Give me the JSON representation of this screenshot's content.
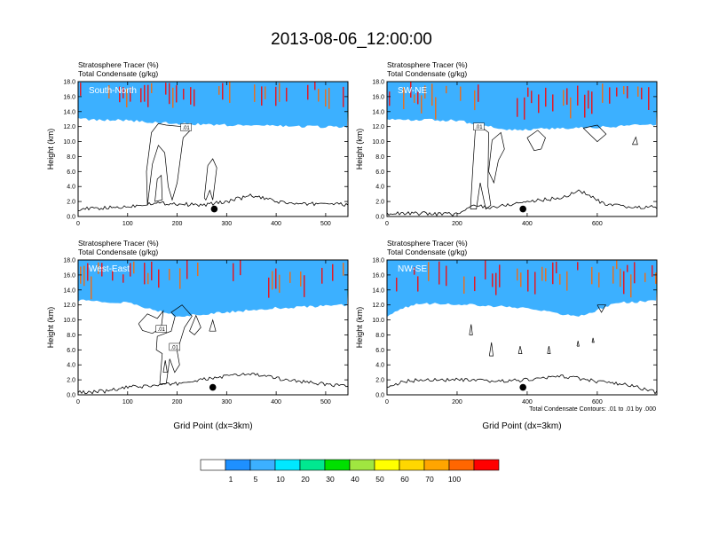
{
  "title": "2013-08-06_12:00:00",
  "colors": {
    "levels": [
      "#ffffff",
      "#1e90ff",
      "#3cb0ff",
      "#00e8ff",
      "#00e890",
      "#00e000",
      "#a0e640",
      "#ffff00",
      "#ffd700",
      "#ffa500",
      "#ff6600",
      "#ff0000"
    ],
    "axis": "#000000",
    "contour": "#000000",
    "terrain": "#000000",
    "marker": "#000000"
  },
  "legend": {
    "labels": [
      "1",
      "5",
      "10",
      "20",
      "30",
      "40",
      "50",
      "60",
      "70",
      "100"
    ]
  },
  "footnote": "Total Condensate Contours: .01 to .01 by .000",
  "chart_data": [
    {
      "type": "heatmap",
      "panel_label": "South-North",
      "subtitle1": "Stratosphere Tracer   (%)",
      "subtitle2": "Total Condensate   (g/kg)",
      "ylabel": "Height (km)",
      "xlabel": "",
      "xlim": [
        0,
        545
      ],
      "ylim": [
        0,
        18
      ],
      "xticks": [
        0,
        100,
        200,
        300,
        400,
        500
      ],
      "yticks": [
        "0.0",
        "2.0",
        "4.0",
        "6.0",
        "8.0",
        "10.0",
        "12.0",
        "14.0",
        "16.0",
        "18.0"
      ],
      "tracer_base_km": [
        [
          0,
          13.0
        ],
        [
          100,
          12.8
        ],
        [
          200,
          12.4
        ],
        [
          300,
          12.2
        ],
        [
          400,
          12.1
        ],
        [
          545,
          11.9
        ]
      ],
      "terrain_km": [
        [
          0,
          1.0
        ],
        [
          50,
          1.1
        ],
        [
          100,
          1.3
        ],
        [
          150,
          1.8
        ],
        [
          200,
          1.7
        ],
        [
          250,
          1.5
        ],
        [
          300,
          2.0
        ],
        [
          350,
          2.8
        ],
        [
          400,
          2.0
        ],
        [
          450,
          1.6
        ],
        [
          500,
          1.8
        ],
        [
          545,
          1.5
        ]
      ],
      "marker": [
        275,
        1.0
      ],
      "contour_labels": [
        {
          "text": ".01",
          "x": 218,
          "y": 11.9
        }
      ],
      "contours": [
        [
          [
            140,
            1.5
          ],
          [
            150,
            7.0
          ],
          [
            162,
            9.5
          ],
          [
            175,
            8.5
          ],
          [
            182,
            4.0
          ],
          [
            190,
            2.2
          ],
          [
            200,
            4.5
          ],
          [
            212,
            10.5
          ],
          [
            228,
            11.6
          ],
          [
            210,
            12.0
          ],
          [
            178,
            12.2
          ],
          [
            162,
            12.4
          ],
          [
            148,
            11.2
          ],
          [
            138,
            6.0
          ],
          [
            140,
            1.5
          ]
        ],
        [
          [
            255,
            2.5
          ],
          [
            262,
            6.8
          ],
          [
            272,
            7.7
          ],
          [
            280,
            6.5
          ],
          [
            272,
            2.2
          ],
          [
            266,
            3.5
          ],
          [
            258,
            2.2
          ],
          [
            255,
            2.5
          ]
        ],
        [
          [
            155,
            2.0
          ],
          [
            160,
            5.0
          ],
          [
            168,
            5.5
          ],
          [
            170,
            2.2
          ],
          [
            155,
            2.0
          ]
        ]
      ]
    },
    {
      "type": "heatmap",
      "panel_label": "SW-NE",
      "subtitle1": "Stratosphere Tracer   (%)",
      "subtitle2": "Total Condensate   (g/kg)",
      "ylabel": "Height (km)",
      "xlabel": "",
      "xlim": [
        0,
        770
      ],
      "ylim": [
        0,
        18
      ],
      "xticks": [
        0,
        200,
        400,
        600
      ],
      "yticks": [
        "0.0",
        "2.0",
        "4.0",
        "6.0",
        "8.0",
        "10.0",
        "12.0",
        "14.0",
        "16.0",
        "18.0"
      ],
      "tracer_base_km": [
        [
          0,
          13.0
        ],
        [
          200,
          12.8
        ],
        [
          350,
          11.5
        ],
        [
          500,
          11.8
        ],
        [
          650,
          12.0
        ],
        [
          770,
          12.3
        ]
      ],
      "terrain_km": [
        [
          0,
          0.4
        ],
        [
          100,
          0.4
        ],
        [
          200,
          0.3
        ],
        [
          250,
          1.5
        ],
        [
          300,
          1.2
        ],
        [
          400,
          2.0
        ],
        [
          500,
          2.5
        ],
        [
          550,
          3.5
        ],
        [
          620,
          1.6
        ],
        [
          700,
          1.2
        ],
        [
          770,
          1.3
        ]
      ],
      "marker": [
        388,
        1.0
      ],
      "contour_labels": [
        {
          "text": ".01",
          "x": 262,
          "y": 12.0
        }
      ],
      "contours": [
        [
          [
            238,
            1.0
          ],
          [
            245,
            6.5
          ],
          [
            252,
            11.6
          ],
          [
            265,
            12.1
          ],
          [
            290,
            11.2
          ],
          [
            288,
            4.0
          ],
          [
            296,
            1.5
          ],
          [
            282,
            1.0
          ],
          [
            266,
            4.5
          ],
          [
            255,
            1.0
          ],
          [
            238,
            1.0
          ]
        ],
        [
          [
            290,
            6.0
          ],
          [
            300,
            10.2
          ],
          [
            325,
            11.2
          ],
          [
            335,
            9.0
          ],
          [
            318,
            7.5
          ],
          [
            305,
            4.5
          ],
          [
            290,
            6.0
          ]
        ],
        [
          [
            400,
            10.5
          ],
          [
            430,
            11.5
          ],
          [
            452,
            10.5
          ],
          [
            440,
            9.0
          ],
          [
            420,
            8.8
          ],
          [
            400,
            10.5
          ]
        ],
        [
          [
            560,
            11.8
          ],
          [
            600,
            10.0
          ],
          [
            625,
            11.0
          ],
          [
            600,
            12.2
          ],
          [
            560,
            11.8
          ]
        ],
        [
          [
            700,
            9.6
          ],
          [
            710,
            10.6
          ],
          [
            715,
            9.6
          ],
          [
            700,
            9.6
          ]
        ]
      ]
    },
    {
      "type": "heatmap",
      "panel_label": "West-East",
      "subtitle1": "Stratosphere Tracer   (%)",
      "subtitle2": "Total Condensate   (g/kg)",
      "ylabel": "Height (km)",
      "xlabel": "Grid Point (dx=3km)",
      "xlim": [
        0,
        545
      ],
      "ylim": [
        0,
        18
      ],
      "xticks": [
        0,
        100,
        200,
        300,
        400,
        500
      ],
      "yticks": [
        "0.0",
        "2.0",
        "4.0",
        "6.0",
        "8.0",
        "10.0",
        "12.0",
        "14.0",
        "16.0",
        "18.0"
      ],
      "tracer_base_km": [
        [
          0,
          12.6
        ],
        [
          100,
          12.3
        ],
        [
          200,
          10.5
        ],
        [
          300,
          11.0
        ],
        [
          400,
          11.6
        ],
        [
          545,
          12.0
        ]
      ],
      "terrain_km": [
        [
          0,
          0.3
        ],
        [
          60,
          0.5
        ],
        [
          100,
          1.0
        ],
        [
          150,
          1.2
        ],
        [
          200,
          1.5
        ],
        [
          250,
          2.0
        ],
        [
          300,
          2.5
        ],
        [
          350,
          2.8
        ],
        [
          400,
          2.2
        ],
        [
          450,
          1.8
        ],
        [
          500,
          1.4
        ],
        [
          545,
          1.2
        ]
      ],
      "marker": [
        272,
        1.0
      ],
      "contour_labels": [
        {
          "text": ".01",
          "x": 168,
          "y": 8.8
        },
        {
          "text": ".01",
          "x": 195,
          "y": 6.4
        }
      ],
      "contours": [
        [
          [
            122,
            9.5
          ],
          [
            140,
            10.8
          ],
          [
            160,
            10.2
          ],
          [
            172,
            11.2
          ],
          [
            168,
            9.0
          ],
          [
            150,
            8.2
          ],
          [
            130,
            8.6
          ],
          [
            122,
            9.5
          ]
        ],
        [
          [
            165,
            1.5
          ],
          [
            170,
            5.5
          ],
          [
            158,
            6.0
          ],
          [
            160,
            7.8
          ],
          [
            188,
            8.5
          ],
          [
            196,
            10.5
          ],
          [
            188,
            11.0
          ],
          [
            210,
            12.0
          ],
          [
            230,
            10.5
          ],
          [
            215,
            9.0
          ],
          [
            200,
            5.8
          ],
          [
            205,
            4.0
          ],
          [
            195,
            3.0
          ],
          [
            185,
            4.8
          ],
          [
            178,
            1.5
          ],
          [
            165,
            1.5
          ]
        ],
        [
          [
            225,
            8.5
          ],
          [
            238,
            10.6
          ],
          [
            248,
            9.0
          ],
          [
            235,
            8.0
          ],
          [
            225,
            8.5
          ]
        ],
        [
          [
            265,
            8.5
          ],
          [
            272,
            10.0
          ],
          [
            278,
            8.5
          ],
          [
            265,
            8.5
          ]
        ],
        [
          [
            172,
            3.0
          ],
          [
            176,
            4.6
          ],
          [
            180,
            3.0
          ],
          [
            172,
            3.0
          ]
        ]
      ]
    },
    {
      "type": "heatmap",
      "panel_label": "NW-SE",
      "subtitle1": "Stratosphere Tracer   (%)",
      "subtitle2": "Total Condensate   (g/kg)",
      "ylabel": "Height (km)",
      "xlabel": "Grid Point (dx=3km)",
      "xlim": [
        0,
        770
      ],
      "ylim": [
        0,
        18
      ],
      "xticks": [
        0,
        200,
        400,
        600
      ],
      "yticks": [
        "0.0",
        "2.0",
        "4.0",
        "6.0",
        "8.0",
        "10.0",
        "12.0",
        "14.0",
        "16.0",
        "18.0"
      ],
      "tracer_base_km": [
        [
          0,
          10.5
        ],
        [
          40,
          11.5
        ],
        [
          100,
          12.2
        ],
        [
          250,
          12.0
        ],
        [
          400,
          11.6
        ],
        [
          500,
          10.8
        ],
        [
          560,
          10.5
        ],
        [
          650,
          12.3
        ],
        [
          770,
          12.5
        ]
      ],
      "terrain_km": [
        [
          0,
          1.0
        ],
        [
          50,
          1.8
        ],
        [
          100,
          2.0
        ],
        [
          200,
          2.0
        ],
        [
          300,
          1.8
        ],
        [
          400,
          2.0
        ],
        [
          500,
          2.5
        ],
        [
          600,
          1.8
        ],
        [
          700,
          1.2
        ],
        [
          770,
          0.3
        ]
      ],
      "marker": [
        388,
        1.0
      ],
      "contour_labels": [],
      "contours": [
        [
          [
            235,
            8.0
          ],
          [
            240,
            9.4
          ],
          [
            244,
            8.0
          ],
          [
            235,
            8.0
          ]
        ],
        [
          [
            292,
            5.2
          ],
          [
            298,
            7.0
          ],
          [
            303,
            5.2
          ],
          [
            292,
            5.2
          ]
        ],
        [
          [
            375,
            5.5
          ],
          [
            380,
            6.5
          ],
          [
            385,
            5.5
          ],
          [
            375,
            5.5
          ]
        ],
        [
          [
            458,
            5.5
          ],
          [
            462,
            6.5
          ],
          [
            466,
            5.5
          ],
          [
            458,
            5.5
          ]
        ],
        [
          [
            542,
            6.5
          ],
          [
            545,
            7.2
          ],
          [
            548,
            6.5
          ],
          [
            542,
            6.5
          ]
        ],
        [
          [
            585,
            7.0
          ],
          [
            588,
            7.6
          ],
          [
            591,
            7.0
          ],
          [
            585,
            7.0
          ]
        ],
        [
          [
            600,
            12.0
          ],
          [
            612,
            11.0
          ],
          [
            624,
            12.0
          ],
          [
            600,
            12.0
          ]
        ]
      ]
    }
  ]
}
